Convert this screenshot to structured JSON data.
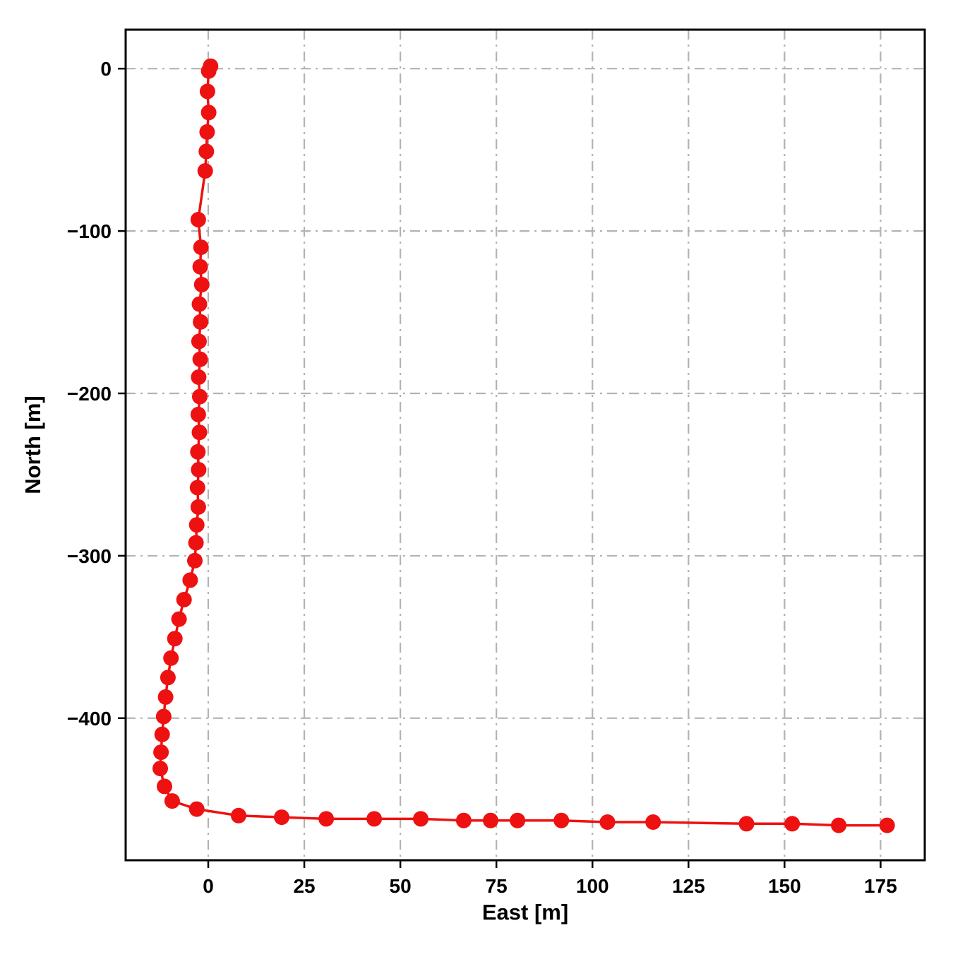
{
  "figure": {
    "background": "#ffffff",
    "axes_edge_color": "#000000",
    "grid_color": "#b3b3b3",
    "grid_style": "dashdot",
    "tick_label_color": "#000000"
  },
  "chart_data": {
    "type": "line",
    "title": "",
    "xlabel": "East [m]",
    "ylabel": "North [m]",
    "xlim": [
      -21.5,
      186.5
    ],
    "ylim": [
      -487.5,
      24
    ],
    "xticks": [
      0,
      25,
      50,
      75,
      100,
      125,
      150,
      175
    ],
    "yticks": [
      0,
      -100,
      -200,
      -300,
      -400
    ],
    "grid": true,
    "legend": null,
    "series": [
      {
        "name": "trajectory",
        "color": "#ee1111",
        "marker": "circle",
        "marker_size": 11,
        "line_width": 3.5,
        "points": [
          [
            0.6,
            1.5
          ],
          [
            0.1,
            -1.5
          ],
          [
            -0.2,
            -14
          ],
          [
            0.1,
            -27
          ],
          [
            -0.3,
            -39
          ],
          [
            -0.5,
            -51
          ],
          [
            -0.8,
            -63
          ],
          [
            -2.6,
            -93
          ],
          [
            -1.9,
            -110
          ],
          [
            -2.1,
            -122
          ],
          [
            -1.7,
            -133
          ],
          [
            -2.3,
            -145
          ],
          [
            -2.0,
            -156
          ],
          [
            -2.4,
            -168
          ],
          [
            -2.1,
            -179
          ],
          [
            -2.5,
            -190
          ],
          [
            -2.2,
            -202
          ],
          [
            -2.6,
            -213
          ],
          [
            -2.3,
            -224
          ],
          [
            -2.7,
            -236
          ],
          [
            -2.5,
            -247
          ],
          [
            -2.8,
            -258
          ],
          [
            -2.6,
            -270
          ],
          [
            -3.0,
            -281
          ],
          [
            -3.2,
            -292
          ],
          [
            -3.5,
            -303
          ],
          [
            -4.7,
            -315
          ],
          [
            -6.3,
            -327
          ],
          [
            -7.6,
            -339
          ],
          [
            -8.7,
            -351
          ],
          [
            -9.7,
            -363
          ],
          [
            -10.5,
            -375
          ],
          [
            -11.1,
            -387
          ],
          [
            -11.6,
            -399
          ],
          [
            -12.0,
            -410
          ],
          [
            -12.3,
            -421
          ],
          [
            -12.5,
            -431
          ],
          [
            -11.4,
            -442
          ],
          [
            -9.4,
            -451
          ],
          [
            -3.0,
            -456
          ],
          [
            7.9,
            -460
          ],
          [
            19.1,
            -461
          ],
          [
            30.7,
            -462
          ],
          [
            43.2,
            -462
          ],
          [
            55.3,
            -462
          ],
          [
            66.5,
            -463
          ],
          [
            73.5,
            -463
          ],
          [
            80.5,
            -463
          ],
          [
            91.9,
            -463
          ],
          [
            103.9,
            -464
          ],
          [
            115.8,
            -464
          ],
          [
            140.1,
            -465
          ],
          [
            152.0,
            -465
          ],
          [
            164.1,
            -466
          ],
          [
            176.7,
            -466
          ]
        ]
      }
    ]
  }
}
